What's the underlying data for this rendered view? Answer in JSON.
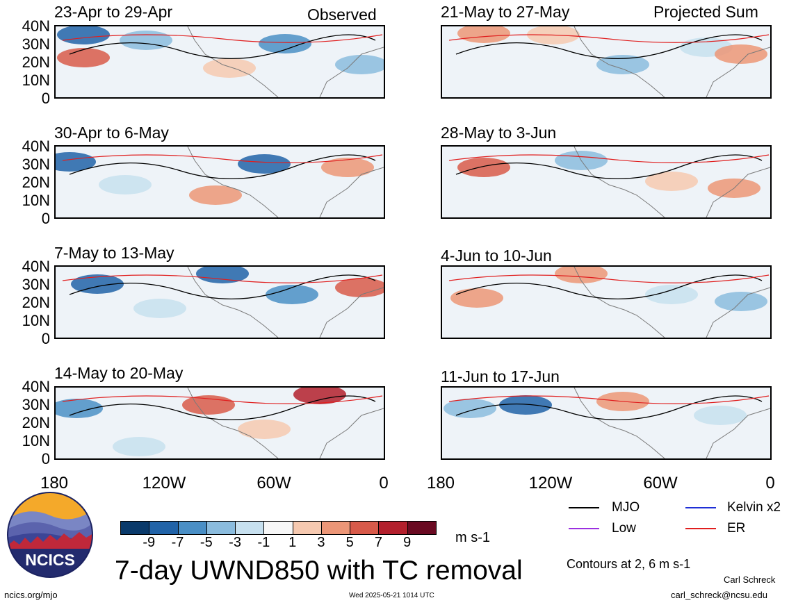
{
  "panels": [
    {
      "period": "23-Apr to 29-Apr",
      "tag": "Observed"
    },
    {
      "period": "21-May to 27-May",
      "tag": "Projected Sum"
    },
    {
      "period": "30-Apr to 6-May",
      "tag": ""
    },
    {
      "period": "28-May to 3-Jun",
      "tag": ""
    },
    {
      "period": "7-May to 13-May",
      "tag": ""
    },
    {
      "period": "4-Jun to 10-Jun",
      "tag": ""
    },
    {
      "period": "14-May to 20-May",
      "tag": ""
    },
    {
      "period": "11-Jun to 17-Jun",
      "tag": ""
    }
  ],
  "lat_labels": [
    "40N",
    "30N",
    "20N",
    "10N",
    "0"
  ],
  "lon_labels": [
    "180",
    "120W",
    "60W",
    "0"
  ],
  "colorbar": {
    "labels": [
      "-9",
      "-7",
      "-5",
      "-3",
      "-1",
      "1",
      "3",
      "5",
      "7",
      "9"
    ],
    "colors": [
      "#0a3a6b",
      "#2163a8",
      "#4a8fc6",
      "#8bbcde",
      "#c7e0ef",
      "#f7f7f7",
      "#f6c9b0",
      "#ec9677",
      "#d85a4a",
      "#b3202d",
      "#6a0a22"
    ],
    "units": "m s-1"
  },
  "legend": {
    "items": [
      {
        "label": "MJO",
        "color": "#000000"
      },
      {
        "label": "Kelvin x2",
        "color": "#1f2fd6"
      },
      {
        "label": "Low",
        "color": "#9b30e0"
      },
      {
        "label": "ER",
        "color": "#e01f1f"
      }
    ],
    "contours_note": "Contours at 2, 6 m s-1"
  },
  "title": "7-day UWND850 with TC removal",
  "logo_text": "NCICS",
  "footer": {
    "url": "ncics.org/mjo",
    "timestamp": "Wed 2025-05-21 1014 UTC",
    "author": "Carl Schreck",
    "email": "carl_schreck@ncsu.edu"
  }
}
